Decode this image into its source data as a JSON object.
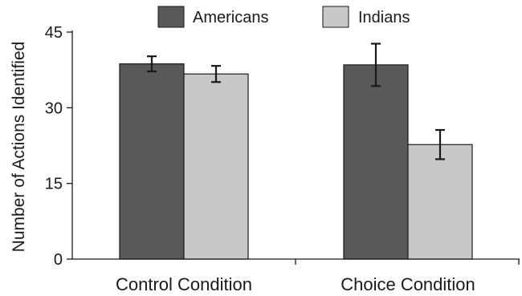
{
  "chart_data": {
    "type": "bar",
    "title": "",
    "xlabel": "",
    "ylabel": "Number of Actions Identified",
    "categories": [
      "Control Condition",
      "Choice Condition"
    ],
    "yticks": [
      "0",
      "15",
      "30",
      "45"
    ],
    "ylim": [
      0,
      45
    ],
    "grid": false,
    "legend_position": "top",
    "series": [
      {
        "name": "Americans",
        "color": "#595959",
        "values": [
          38.7,
          38.5
        ],
        "errors": [
          1.5,
          4.2
        ]
      },
      {
        "name": "Indians",
        "color": "#c8c8c8",
        "values": [
          36.7,
          22.7
        ],
        "errors": [
          1.6,
          2.9
        ]
      }
    ]
  }
}
